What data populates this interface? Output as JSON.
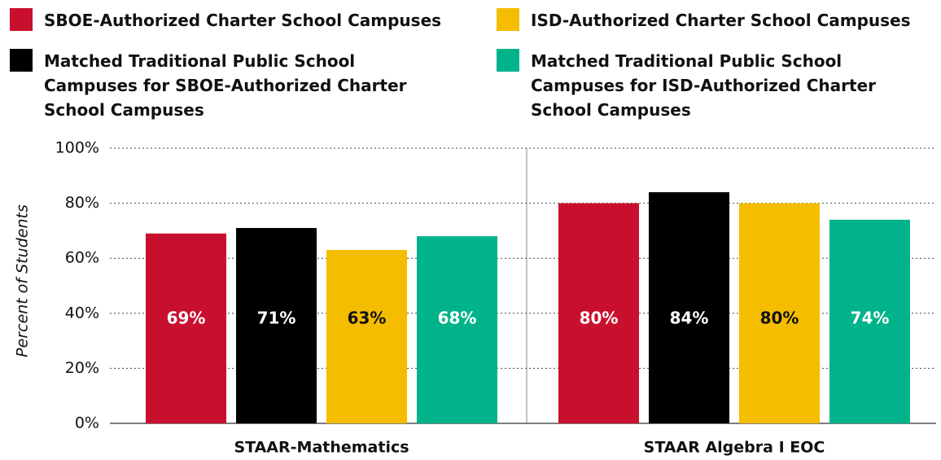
{
  "chart_data": {
    "type": "bar",
    "categories": [
      "STAAR-Mathematics",
      "STAAR Algebra I EOC"
    ],
    "y_label": "Percent of Students",
    "ylim": [
      0,
      100
    ],
    "yticks": [
      {
        "value": 0,
        "label": "0%"
      },
      {
        "value": 20,
        "label": "20%"
      },
      {
        "value": 40,
        "label": "40%"
      },
      {
        "value": 60,
        "label": "60%"
      },
      {
        "value": 80,
        "label": "80%"
      },
      {
        "value": 100,
        "label": "100%"
      }
    ],
    "grid": true,
    "legend": "top",
    "series": [
      {
        "name": "SBOE-Authorized Charter School Campuses",
        "color": "#c8102e",
        "values": [
          69,
          80
        ],
        "value_labels": [
          "69%",
          "80%"
        ]
      },
      {
        "name": "Matched Traditional Public School Campuses for SBOE-Authorized Charter School Campuses",
        "color": "#000000",
        "values": [
          71,
          84
        ],
        "value_labels": [
          "71%",
          "84%"
        ]
      },
      {
        "name": "ISD-Authorized Charter School Campuses",
        "color": "#f5bd00",
        "values": [
          63,
          80
        ],
        "value_labels": [
          "63%",
          "80%"
        ]
      },
      {
        "name": "Matched Traditional Public School Campuses for ISD-Authorized Charter School Campuses",
        "color": "#00b38a",
        "values": [
          68,
          74
        ],
        "value_labels": [
          "68%",
          "74%"
        ]
      }
    ]
  }
}
